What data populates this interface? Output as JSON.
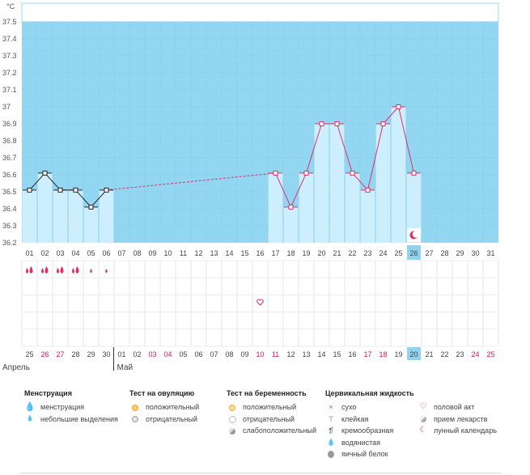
{
  "chart_data": {
    "type": "line",
    "unit_label": "°C",
    "y_ticks": [
      "37.5",
      "37.4",
      "37.3",
      "37.2",
      "37.1",
      "37",
      "36.9",
      "36.8",
      "36.7",
      "36.6",
      "36.5",
      "36.4",
      "36.3",
      "36.2"
    ],
    "ylim": [
      36.2,
      37.6
    ],
    "cycle_days": [
      "01",
      "02",
      "03",
      "04",
      "05",
      "06",
      "07",
      "08",
      "09",
      "10",
      "11",
      "12",
      "13",
      "14",
      "15",
      "16",
      "17",
      "18",
      "19",
      "20",
      "21",
      "22",
      "23",
      "24",
      "25",
      "26",
      "27",
      "28",
      "29",
      "30",
      "31"
    ],
    "highlighted_cycle_day": "26",
    "temperatures": [
      36.51,
      36.61,
      36.51,
      36.51,
      36.41,
      36.51,
      null,
      null,
      null,
      null,
      null,
      null,
      null,
      null,
      null,
      null,
      36.61,
      36.41,
      36.61,
      36.9,
      36.9,
      36.61,
      36.51,
      36.9,
      37.0,
      36.61,
      null,
      null,
      null,
      null,
      null
    ],
    "menstruation": [
      "big",
      "big",
      "big",
      "big",
      "small",
      "small"
    ],
    "intercourse_day": "16",
    "moon_day": "26",
    "calendar_dates": [
      {
        "d": "25",
        "w": false
      },
      {
        "d": "26",
        "w": true
      },
      {
        "d": "27",
        "w": true
      },
      {
        "d": "28",
        "w": false
      },
      {
        "d": "29",
        "w": false
      },
      {
        "d": "30",
        "w": false
      },
      {
        "d": "01",
        "w": false
      },
      {
        "d": "02",
        "w": false
      },
      {
        "d": "03",
        "w": true
      },
      {
        "d": "04",
        "w": true
      },
      {
        "d": "05",
        "w": false
      },
      {
        "d": "06",
        "w": false
      },
      {
        "d": "07",
        "w": false
      },
      {
        "d": "08",
        "w": false
      },
      {
        "d": "09",
        "w": false
      },
      {
        "d": "10",
        "w": true
      },
      {
        "d": "11",
        "w": true
      },
      {
        "d": "12",
        "w": false
      },
      {
        "d": "13",
        "w": false
      },
      {
        "d": "14",
        "w": false
      },
      {
        "d": "15",
        "w": false
      },
      {
        "d": "16",
        "w": false
      },
      {
        "d": "17",
        "w": true
      },
      {
        "d": "18",
        "w": true
      },
      {
        "d": "19",
        "w": false
      },
      {
        "d": "20",
        "w": false
      },
      {
        "d": "21",
        "w": false
      },
      {
        "d": "22",
        "w": false
      },
      {
        "d": "23",
        "w": false
      },
      {
        "d": "24",
        "w": true
      },
      {
        "d": "25",
        "w": true
      }
    ],
    "highlighted_calendar_date": "20",
    "month_labels": [
      "Апрель",
      "Май"
    ]
  },
  "colors": {
    "accent_blue": "#92d6f2",
    "bar_blue": "#cdeefc",
    "pink": "#e0306a",
    "weekend_red": "#d4185a",
    "highlight_cell": "#8fd3f0"
  },
  "legend": {
    "menstruation": {
      "title": "Менструация",
      "items": [
        {
          "icon": "drop-large-icon",
          "label": "менструация"
        },
        {
          "icon": "drop-small-icon",
          "label": "небольшие выделения"
        }
      ]
    },
    "ovulation_test": {
      "title": "Тест на овуляцию",
      "items": [
        {
          "icon": "orange-circle-icon",
          "label": "положительный"
        },
        {
          "icon": "gray-circle-icon",
          "label": "отрицательный"
        }
      ]
    },
    "pregnancy_test": {
      "title": "Тест на беременность",
      "items": [
        {
          "icon": "orange-smile-icon",
          "label": "положительный"
        },
        {
          "icon": "white-circle-icon",
          "label": "отрицательный"
        },
        {
          "icon": "gray-half-icon",
          "label": "слабоположительный"
        }
      ]
    },
    "cervical_fluid": {
      "title": "Цервикальная жидкость",
      "items": [
        {
          "icon": "cross-icon",
          "glyph": "×",
          "label": "сухо"
        },
        {
          "icon": "sticky-icon",
          "glyph": "Ţ",
          "label": "клейкая"
        },
        {
          "icon": "creamy-icon",
          "glyph": "❟",
          "label": "кремообразная"
        },
        {
          "icon": "watery-icon",
          "glyph": "●",
          "label": "водянистая"
        },
        {
          "icon": "egg-white-icon",
          "glyph": "⬮",
          "label": "яичный белок"
        }
      ]
    },
    "other": {
      "items": [
        {
          "icon": "heart-icon",
          "glyph": "♡",
          "label": "половой акт"
        },
        {
          "icon": "pill-icon",
          "glyph": "◐",
          "label": "прием лекарств"
        },
        {
          "icon": "moon-icon",
          "glyph": "☾",
          "label": "лунный календарь"
        }
      ]
    }
  }
}
